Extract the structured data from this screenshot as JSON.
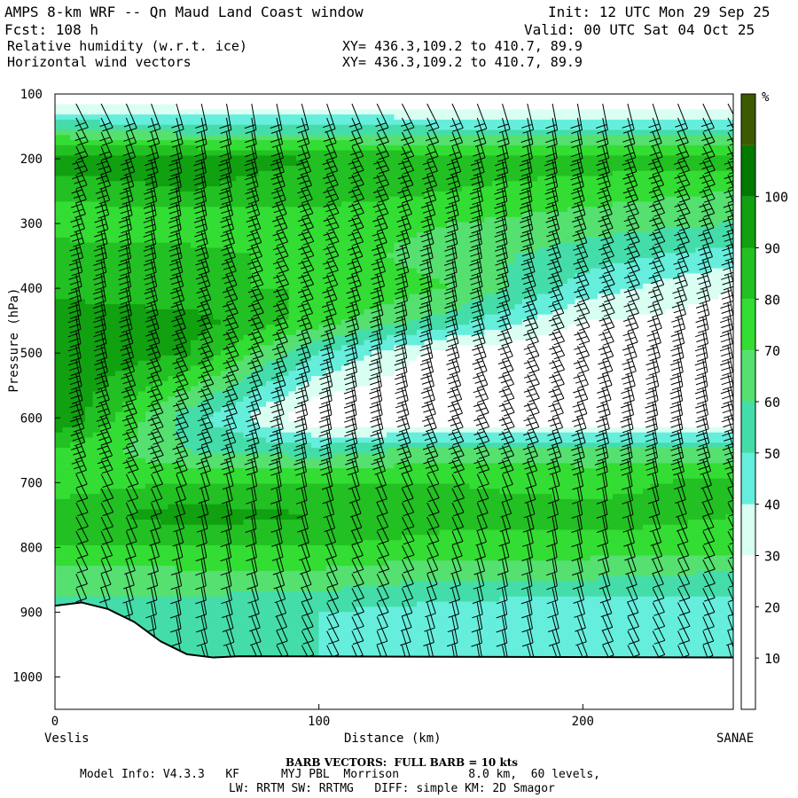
{
  "header": {
    "title_left": "AMPS 8-km WRF -- Qn Maud Land Coast window",
    "fcst": "Fcst: 108 h",
    "init": "Init: 12 UTC Mon 29 Sep 25",
    "valid": "Valid: 00 UTC Sat 04 Oct 25",
    "field1": "Relative humidity (w.r.t. ice)",
    "field2": "Horizontal wind vectors",
    "xy1": "XY= 436.3,109.2 to 410.7, 89.9",
    "xy2": "XY= 436.3,109.2 to 410.7, 89.9"
  },
  "chart_data": {
    "type": "heatmap",
    "ylabel": "Pressure (hPa)",
    "xlabel": "Distance (km)",
    "x_ticks": [
      0,
      100,
      200
    ],
    "y_ticks": [
      100,
      200,
      300,
      400,
      500,
      600,
      700,
      800,
      900,
      1000
    ],
    "xlim": [
      0,
      257
    ],
    "ylim": [
      1050,
      100
    ],
    "left_endpoint": "Veslis",
    "right_endpoint": "SANAE",
    "colorbar": {
      "unit": "%",
      "ticks": [
        10,
        20,
        30,
        40,
        50,
        60,
        70,
        80,
        90,
        100
      ],
      "levels": [
        0,
        10,
        20,
        30,
        40,
        50,
        60,
        70,
        80,
        90,
        100,
        110
      ],
      "colors": [
        "#ffffff",
        "#ffffff",
        "#ffffff",
        "#d8fff2",
        "#66eedd",
        "#44ddaa",
        "#55e070",
        "#33dd33",
        "#22c022",
        "#10a010",
        "#007a00",
        "#3d5a00"
      ]
    },
    "rh_profiles": [
      {
        "x": 0,
        "p": [
          100,
          160,
          200,
          250,
          300,
          350,
          400,
          450,
          500,
          600,
          650,
          700,
          750,
          800,
          850,
          900
        ],
        "rh": [
          15,
          65,
          95,
          85,
          70,
          90,
          85,
          100,
          100,
          100,
          80,
          75,
          85,
          80,
          60,
          60
        ]
      },
      {
        "x": 50,
        "p": [
          100,
          160,
          200,
          250,
          300,
          350,
          400,
          450,
          500,
          600,
          650,
          700,
          750,
          800,
          850,
          900
        ],
        "rh": [
          15,
          60,
          95,
          90,
          70,
          85,
          80,
          95,
          90,
          55,
          60,
          80,
          95,
          80,
          65,
          55
        ]
      },
      {
        "x": 100,
        "p": [
          100,
          160,
          200,
          250,
          300,
          350,
          400,
          450,
          500,
          600,
          650,
          700,
          750,
          800,
          850,
          900
        ],
        "rh": [
          15,
          60,
          90,
          85,
          75,
          75,
          80,
          75,
          50,
          20,
          55,
          80,
          90,
          80,
          65,
          50
        ]
      },
      {
        "x": 150,
        "p": [
          100,
          160,
          200,
          250,
          300,
          350,
          400,
          450,
          500,
          600,
          650,
          700,
          750,
          800,
          850,
          900
        ],
        "rh": [
          15,
          55,
          85,
          80,
          70,
          65,
          70,
          55,
          25,
          15,
          65,
          80,
          85,
          75,
          60,
          45
        ]
      },
      {
        "x": 200,
        "p": [
          100,
          160,
          200,
          250,
          300,
          350,
          400,
          450,
          500,
          600,
          650,
          700,
          750,
          800,
          850,
          900
        ],
        "rh": [
          15,
          55,
          85,
          75,
          65,
          55,
          45,
          30,
          20,
          15,
          65,
          75,
          85,
          75,
          60,
          40
        ]
      },
      {
        "x": 257,
        "p": [
          100,
          160,
          200,
          250,
          300,
          350,
          400,
          450,
          500,
          600,
          650,
          700,
          750,
          800,
          850,
          900
        ],
        "rh": [
          15,
          55,
          85,
          70,
          60,
          45,
          30,
          25,
          20,
          20,
          60,
          85,
          80,
          75,
          55,
          45
        ]
      }
    ],
    "terrain": {
      "x": [
        0,
        10,
        20,
        30,
        40,
        50,
        60,
        70,
        257
      ],
      "p": [
        890,
        885,
        895,
        915,
        945,
        965,
        970,
        968,
        970
      ]
    },
    "grid": false,
    "legend": "right"
  },
  "footer": {
    "barb_title": "BARB VECTORS:  FULL BARB = 10 kts",
    "model_info": "Model Info: V4.3.3   KF      MYJ PBL  Morrison          8.0 km,  60 levels,",
    "model_info2": "LW: RRTM SW: RRTMG   DIFF: simple KM: 2D Smagor"
  }
}
